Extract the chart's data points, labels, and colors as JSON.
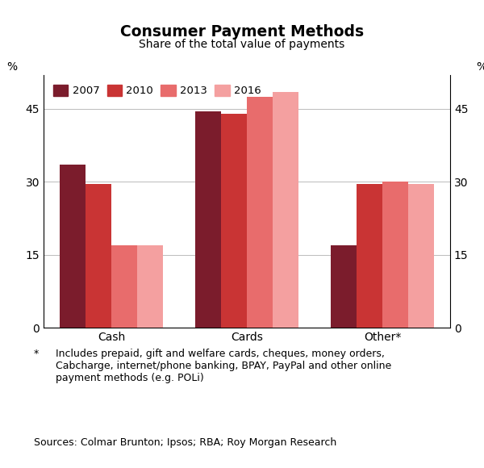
{
  "title": "Consumer Payment Methods",
  "subtitle": "Share of the total value of payments",
  "categories": [
    "Cash",
    "Cards",
    "Other*"
  ],
  "years": [
    "2007",
    "2010",
    "2013",
    "2016"
  ],
  "values": {
    "Cash": [
      33.5,
      29.5,
      17.0,
      17.0
    ],
    "Cards": [
      44.5,
      44.0,
      47.5,
      48.5
    ],
    "Other*": [
      17.0,
      29.5,
      30.0,
      29.5
    ]
  },
  "colors": [
    "#7B1C2C",
    "#C93434",
    "#E86C6C",
    "#F4A0A0"
  ],
  "ylim": [
    0,
    52
  ],
  "yticks": [
    0,
    15,
    30,
    45
  ],
  "ylabel": "%",
  "footnote_star": "*",
  "footnote_text": "Includes prepaid, gift and welfare cards, cheques, money orders,\nCabcharge, internet/phone banking, BPAY, PayPal and other online\npayment methods (e.g. POLi)",
  "sources": "Sources: Colmar Brunton; Ipsos; RBA; Roy Morgan Research",
  "bar_width": 0.19,
  "group_positions": [
    0.5,
    1.5,
    2.5
  ]
}
